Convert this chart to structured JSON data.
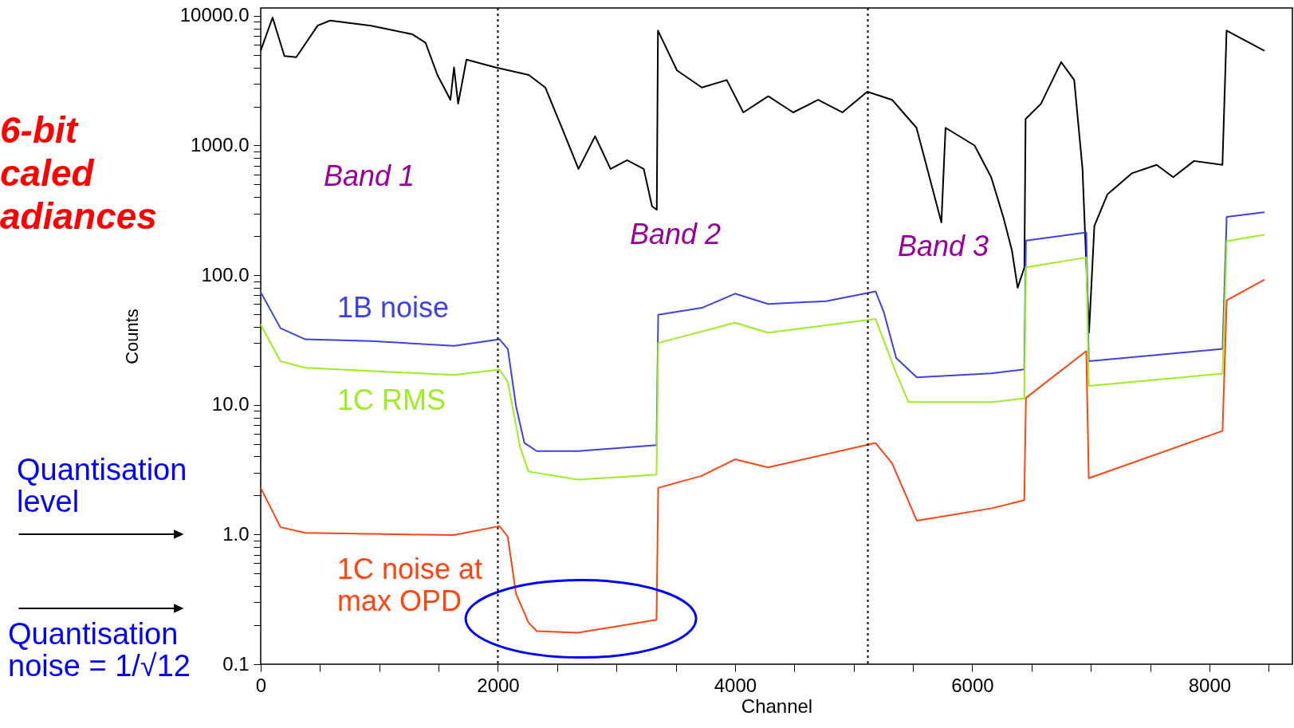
{
  "chart_data": {
    "type": "line",
    "title": "6-bit caled adiances",
    "xlabel": "Channel",
    "ylabel": "Counts",
    "log": "y",
    "grid": false,
    "marker": "none",
    "line_style": "solid",
    "xlim": [
      0,
      8700
    ],
    "xticks": [
      0,
      {
        "value": 500,
        "label": null
      },
      {
        "value": 1000,
        "label": null
      },
      {
        "value": 1500,
        "label": null
      },
      2000,
      {
        "value": 2500,
        "label": null
      },
      {
        "value": 3000,
        "label": null
      },
      {
        "value": 3500,
        "label": null
      },
      4000,
      {
        "value": 4500,
        "label": null
      },
      {
        "value": 5000,
        "label": null
      },
      {
        "value": 5500,
        "label": null
      },
      6000,
      {
        "value": 6500,
        "label": null
      },
      {
        "value": 7000,
        "label": null
      },
      {
        "value": 7500,
        "label": null
      },
      8000,
      {
        "value": 8500,
        "label": null
      }
    ],
    "ylim": [
      0.1,
      11500
    ],
    "yticks": [
      {
        "value": 0.1,
        "label": "0.1"
      },
      {
        "value": 0.2,
        "label": null
      },
      {
        "value": 0.3,
        "label": null
      },
      {
        "value": 0.4,
        "label": null
      },
      {
        "value": 0.5,
        "label": null
      },
      {
        "value": 0.6,
        "label": null
      },
      {
        "value": 0.7,
        "label": null
      },
      {
        "value": 0.8,
        "label": null
      },
      {
        "value": 0.9,
        "label": null
      },
      {
        "value": 1,
        "label": "1.0"
      },
      {
        "value": 2,
        "label": null
      },
      {
        "value": 3,
        "label": null
      },
      {
        "value": 4,
        "label": null
      },
      {
        "value": 5,
        "label": null
      },
      {
        "value": 6,
        "label": null
      },
      {
        "value": 7,
        "label": null
      },
      {
        "value": 8,
        "label": null
      },
      {
        "value": 9,
        "label": null
      },
      {
        "value": 10,
        "label": "10.0"
      },
      {
        "value": 20,
        "label": null
      },
      {
        "value": 30,
        "label": null
      },
      {
        "value": 40,
        "label": null
      },
      {
        "value": 50,
        "label": null
      },
      {
        "value": 60,
        "label": null
      },
      {
        "value": 70,
        "label": null
      },
      {
        "value": 80,
        "label": null
      },
      {
        "value": 90,
        "label": null
      },
      {
        "value": 100,
        "label": "100.0"
      },
      {
        "value": 200,
        "label": null
      },
      {
        "value": 300,
        "label": null
      },
      {
        "value": 400,
        "label": null
      },
      {
        "value": 500,
        "label": null
      },
      {
        "value": 600,
        "label": null
      },
      {
        "value": 700,
        "label": null
      },
      {
        "value": 800,
        "label": null
      },
      {
        "value": 900,
        "label": null
      },
      {
        "value": 1000,
        "label": "1000.0"
      },
      {
        "value": 2000,
        "label": null
      },
      {
        "value": 3000,
        "label": null
      },
      {
        "value": 4000,
        "label": null
      },
      {
        "value": 5000,
        "label": null
      },
      {
        "value": 6000,
        "label": null
      },
      {
        "value": 7000,
        "label": null
      },
      {
        "value": 8000,
        "label": null
      },
      {
        "value": 9000,
        "label": null
      },
      {
        "value": 10000,
        "label": "10000.0"
      }
    ],
    "series": [
      {
        "color": "#000000",
        "x": [
          0,
          100,
          200,
          300,
          480,
          585,
          930,
          1280,
          1390,
          1490,
          1600,
          1630,
          1665,
          1735,
          1980,
          2260,
          2400,
          2540,
          2680,
          2820,
          2950,
          3090,
          3230,
          3300,
          3340,
          3350,
          3510,
          3720,
          3930,
          4070,
          4280,
          4490,
          4700,
          4905,
          5115,
          5325,
          5530,
          5740,
          5775,
          6020,
          6160,
          6265,
          6335,
          6383,
          6440,
          6450,
          6580,
          6750,
          6860,
          6930,
          6985,
          7030,
          7140,
          7345,
          7555,
          7695,
          7870,
          8110,
          8145,
          8460
        ],
        "values": [
          5400,
          9700,
          4900,
          4800,
          8400,
          9200,
          8400,
          7200,
          6200,
          3500,
          2250,
          4000,
          2100,
          4600,
          4000,
          3500,
          2800,
          1370,
          660,
          1180,
          660,
          770,
          660,
          340,
          320,
          7700,
          3800,
          2800,
          3200,
          1800,
          2400,
          1800,
          2250,
          1800,
          2600,
          2250,
          1370,
          255,
          1370,
          1000,
          570,
          275,
          155,
          80,
          115,
          1600,
          2100,
          4400,
          3200,
          660,
          36,
          240,
          420,
          610,
          710,
          570,
          760,
          710,
          7700,
          5400
        ]
      },
      {
        "name": "1B noise",
        "color": "#4040e8",
        "x": [
          0,
          167,
          376,
          934,
          1631,
          2014,
          2084,
          2153,
          2223,
          2328,
          2676,
          3094,
          3338,
          3352,
          3721,
          4000,
          4279,
          4767,
          5185,
          5254,
          5359,
          5533,
          6160,
          6439,
          6453,
          6962,
          6983,
          8111,
          8146,
          8460
        ],
        "values": [
          74,
          39,
          32,
          31,
          28.5,
          32,
          27,
          9.8,
          5.1,
          4.4,
          4.4,
          4.7,
          4.9,
          49.6,
          56,
          72,
          60,
          63,
          75,
          52,
          23,
          16.3,
          17.5,
          18.8,
          185,
          214,
          21.7,
          27,
          282,
          305
        ]
      },
      {
        "name": "1C RMS",
        "color": "#9cee22",
        "x": [
          0,
          167,
          376,
          1631,
          2014,
          2084,
          2188,
          2258,
          2676,
          3338,
          3352,
          4000,
          4279,
          5185,
          5359,
          5463,
          6160,
          6439,
          6453,
          6962,
          6983,
          8111,
          8146,
          8460
        ],
        "values": [
          41.6,
          21.7,
          19.3,
          17,
          18.7,
          15,
          4.7,
          3.06,
          2.65,
          2.9,
          30,
          43,
          36,
          46,
          17.5,
          10.5,
          10.5,
          11.2,
          115,
          137,
          14,
          17.4,
          183,
          205
        ]
      },
      {
        "name": "1C noise at max OPD",
        "color": "#ff4410",
        "x": [
          0,
          167,
          376,
          1631,
          2014,
          2084,
          2153,
          2258,
          2328,
          2676,
          3338,
          3352,
          3721,
          4000,
          4279,
          5185,
          5325,
          5533,
          6160,
          6439,
          6453,
          6962,
          6983,
          8111,
          8146,
          8460
        ],
        "values": [
          2.29,
          1.14,
          1.03,
          0.99,
          1.16,
          0.96,
          0.35,
          0.21,
          0.18,
          0.175,
          0.22,
          2.29,
          2.84,
          3.8,
          3.29,
          5.08,
          3.54,
          1.28,
          1.59,
          1.84,
          11.3,
          26,
          2.72,
          6.3,
          64,
          92
        ]
      }
    ],
    "ref_lines": [
      {
        "axis": "x",
        "value": 2000,
        "color": "#000000",
        "line_style": "dotted"
      },
      {
        "axis": "x",
        "value": 5120,
        "color": "#000000",
        "line_style": "dotted"
      }
    ],
    "annotations": [
      "Band 1",
      "Band 2",
      "Band 3",
      "Quantisation level",
      "Quantisation noise = 1/√12"
    ]
  }
}
